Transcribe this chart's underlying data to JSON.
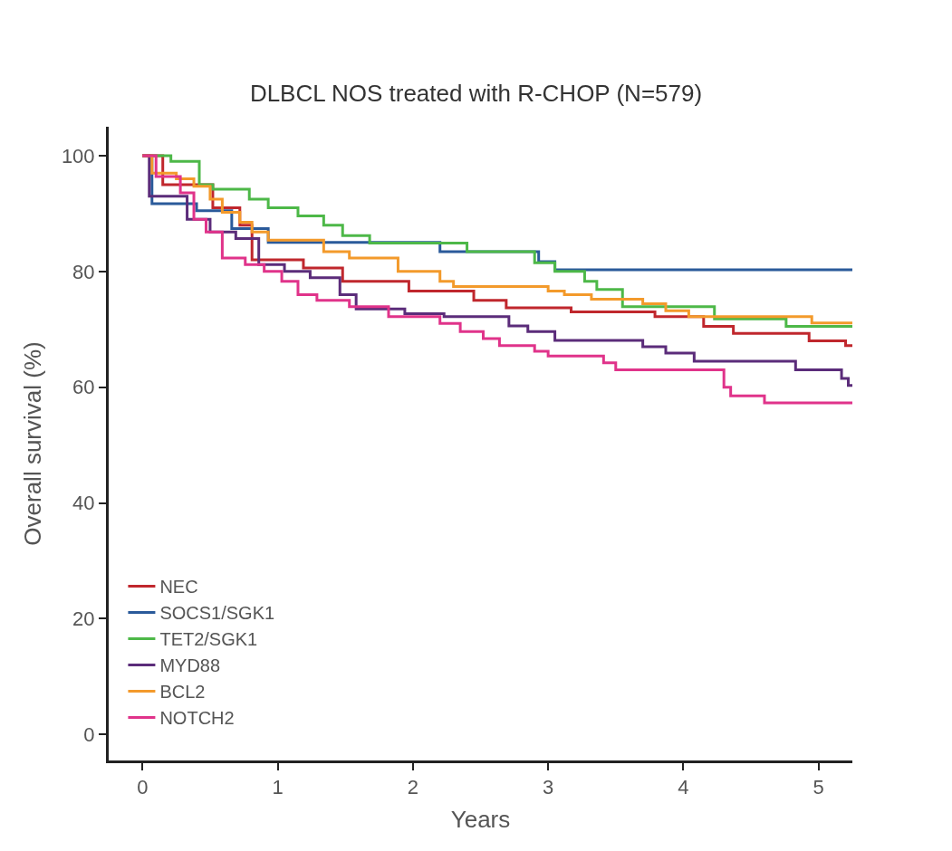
{
  "chart_data": {
    "type": "step",
    "title": "DLBCL NOS treated with R-CHOP (N=579)",
    "xlabel": "Years",
    "ylabel": "Overall survival (%)",
    "xlim": [
      -0.25,
      5.25
    ],
    "ylim": [
      -4.5,
      105
    ],
    "xticks": [
      0,
      1,
      2,
      3,
      4,
      5
    ],
    "yticks": [
      0,
      20,
      40,
      60,
      80,
      100
    ],
    "grid": false,
    "legend": "bottom left",
    "series": [
      {
        "name": "NEC",
        "color": "#c0272d",
        "x": [
          0,
          0.15,
          0.52,
          0.72,
          0.81,
          1.19,
          1.48,
          1.97,
          2.45,
          2.69,
          3.17,
          3.79,
          4.15,
          4.37,
          4.93,
          5.2,
          5.25
        ],
        "values": [
          100,
          95,
          91,
          88,
          82,
          80.6,
          78.3,
          76.6,
          75,
          73.7,
          73,
          72.2,
          70.5,
          69.3,
          68,
          67.2,
          67.2
        ]
      },
      {
        "name": "SOCS1/SGK1",
        "color": "#2a5a9a",
        "x": [
          0,
          0.07,
          0.4,
          0.66,
          0.93,
          2.2,
          2.93,
          3.05,
          5.25
        ],
        "values": [
          100,
          91.7,
          90.5,
          87.4,
          85,
          83.4,
          81.7,
          80.3,
          80.3
        ]
      },
      {
        "name": "TET2/SGK1",
        "color": "#4db848",
        "x": [
          0,
          0.21,
          0.42,
          0.52,
          0.79,
          0.93,
          1.15,
          1.34,
          1.48,
          1.68,
          2.4,
          2.9,
          3.05,
          3.27,
          3.36,
          3.55,
          4.23,
          4.76,
          5.25
        ],
        "values": [
          100,
          99,
          95,
          94.2,
          92.5,
          91,
          89.6,
          88,
          86.2,
          84.9,
          83.4,
          81.5,
          80,
          78.3,
          76.9,
          73.9,
          71.8,
          70.5,
          70.5
        ]
      },
      {
        "name": "MYD88",
        "color": "#5b2c7a",
        "x": [
          0,
          0.05,
          0.33,
          0.5,
          0.69,
          0.86,
          1.05,
          1.24,
          1.46,
          1.58,
          1.94,
          2.23,
          2.71,
          2.85,
          3.05,
          3.7,
          3.87,
          4.08,
          4.83,
          5.17,
          5.22,
          5.25
        ],
        "values": [
          100,
          93,
          89,
          86.8,
          85.7,
          81.2,
          80,
          78.9,
          76,
          73.5,
          72.7,
          72.2,
          70.6,
          69.6,
          68.1,
          67,
          65.9,
          64.5,
          63,
          61.5,
          60.3,
          60.3
        ]
      },
      {
        "name": "BCL2",
        "color": "#f39a2b",
        "x": [
          0,
          0.07,
          0.25,
          0.38,
          0.5,
          0.59,
          0.72,
          0.81,
          0.93,
          1.34,
          1.53,
          1.89,
          2.2,
          2.3,
          3.0,
          3.12,
          3.32,
          3.7,
          3.87,
          4.04,
          4.95,
          5.25
        ],
        "values": [
          100,
          97,
          96,
          94.7,
          92.5,
          90.2,
          88.5,
          86.8,
          85.4,
          83.4,
          82.3,
          80,
          78.3,
          77.4,
          76.6,
          76,
          75.2,
          74.4,
          73.2,
          72.2,
          71.1,
          71.1
        ]
      },
      {
        "name": "NOTCH2",
        "color": "#e0338a",
        "x": [
          0,
          0.1,
          0.28,
          0.38,
          0.47,
          0.59,
          0.76,
          0.9,
          1.03,
          1.15,
          1.29,
          1.53,
          1.82,
          2.2,
          2.35,
          2.52,
          2.64,
          2.9,
          3.0,
          3.41,
          3.5,
          4.3,
          4.35,
          4.6,
          5.25
        ],
        "values": [
          100,
          96.4,
          93.6,
          89,
          86.8,
          82.3,
          81.2,
          80,
          78.3,
          76,
          75,
          73.9,
          72.2,
          71,
          69.6,
          68.4,
          67.2,
          66.2,
          65.4,
          64.2,
          63,
          60,
          58.5,
          57.3,
          57.3
        ]
      }
    ]
  }
}
